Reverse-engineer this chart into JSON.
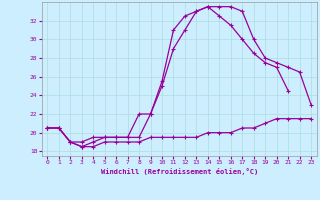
{
  "xlabel": "Windchill (Refroidissement éolien,°C)",
  "background_color": "#cceeff",
  "line_color": "#990099",
  "grid_color": "#aadddd",
  "x_ticks": [
    0,
    1,
    2,
    3,
    4,
    5,
    6,
    7,
    8,
    9,
    10,
    11,
    12,
    13,
    14,
    15,
    16,
    17,
    18,
    19,
    20,
    21,
    22,
    23
  ],
  "ylim": [
    17.5,
    34.0
  ],
  "xlim": [
    -0.5,
    23.5
  ],
  "y_ticks": [
    18,
    20,
    22,
    24,
    26,
    28,
    30,
    32
  ],
  "curve1": [
    20.5,
    20.5,
    19.0,
    19.0,
    19.5,
    19.5,
    19.5,
    19.5,
    19.5,
    22.0,
    25.5,
    31.0,
    32.5,
    33.0,
    33.5,
    32.5,
    31.5,
    30.0,
    28.5,
    27.5,
    27.0,
    24.5,
    null,
    null
  ],
  "curve2": [
    20.5,
    20.5,
    19.0,
    18.5,
    18.5,
    19.0,
    19.0,
    19.0,
    19.0,
    19.5,
    19.5,
    19.5,
    19.5,
    19.5,
    20.0,
    20.0,
    20.0,
    20.5,
    20.5,
    21.0,
    21.5,
    21.5,
    21.5,
    21.5
  ],
  "curve3": [
    20.5,
    20.5,
    19.0,
    18.5,
    19.0,
    19.5,
    19.5,
    19.5,
    22.0,
    22.0,
    25.0,
    29.0,
    31.0,
    33.0,
    33.5,
    33.5,
    33.5,
    33.0,
    30.0,
    28.0,
    27.5,
    27.0,
    26.5,
    23.0
  ]
}
